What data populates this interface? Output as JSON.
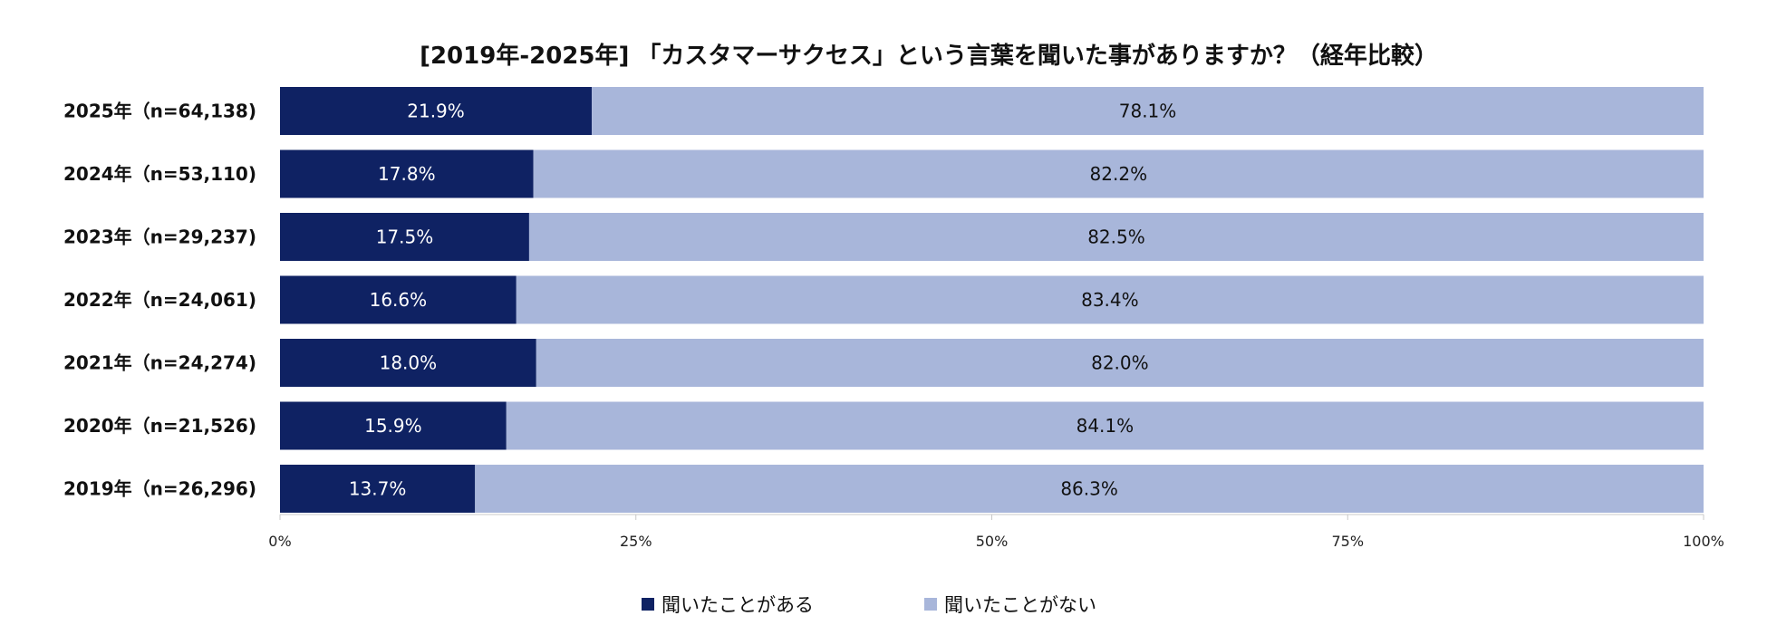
{
  "chart_data": {
    "type": "bar",
    "orientation": "horizontal",
    "stacked": true,
    "title": "[2019年-2025年] 「カスタマーサクセス」という言葉を聞いた事がありますか？（経年比較）",
    "categories": [
      "2025年（n=64,138)",
      "2024年（n=53,110)",
      "2023年（n=29,237)",
      "2022年（n=24,061)",
      "2021年（n=24,274)",
      "2020年（n=21,526)",
      "2019年（n=26,296)"
    ],
    "series": [
      {
        "name": "聞いたことがある",
        "color": "#0f2263",
        "values": [
          21.9,
          17.8,
          17.5,
          16.6,
          18.0,
          15.9,
          13.7
        ],
        "labels": [
          "21.9%",
          "17.8%",
          "17.5%",
          "16.6%",
          "18.0%",
          "15.9%",
          "13.7%"
        ]
      },
      {
        "name": "聞いたことがない",
        "color": "#a8b6da",
        "values": [
          78.1,
          82.2,
          82.5,
          83.4,
          82.0,
          84.1,
          86.3
        ],
        "labels": [
          "78.1%",
          "82.2%",
          "82.5%",
          "83.4%",
          "82.0%",
          "84.1%",
          "86.3%"
        ]
      }
    ],
    "xlim": [
      0,
      100
    ],
    "xticks": [
      0,
      25,
      50,
      75,
      100
    ],
    "xtick_labels": [
      "0%",
      "25%",
      "50%",
      "75%",
      "100%"
    ],
    "grid": false,
    "legend_position": "bottom"
  }
}
